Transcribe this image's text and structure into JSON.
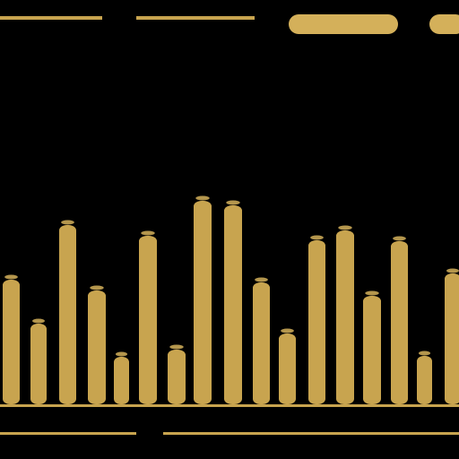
{
  "colors": {
    "background": "#000000",
    "bar": "#c8a44f",
    "bar_dark": "#b8943f",
    "accent": "#d4b05a"
  },
  "bars": {
    "count": 17
  },
  "top_controls": {
    "pill_1_icon": "pill-shape",
    "pill_2_icon": "pill-shape"
  }
}
